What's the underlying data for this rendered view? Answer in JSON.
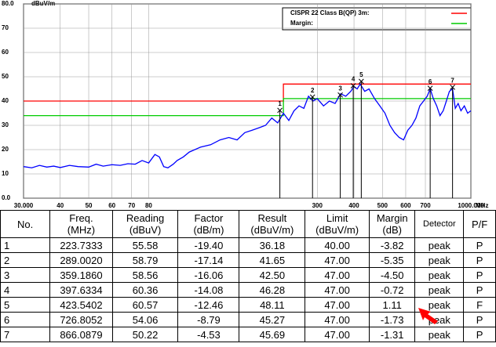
{
  "chart_data": {
    "type": "line",
    "y_label": "dBuV/m",
    "x_unit": "MHz",
    "xlog": true,
    "xlim": [
      30,
      1000
    ],
    "ylim": [
      0,
      80
    ],
    "xticks": [
      {
        "value": 30,
        "label": "30.000"
      },
      40,
      50,
      60,
      70,
      80,
      300,
      400,
      500,
      600,
      700,
      {
        "value": 1000,
        "label": "1000.000"
      }
    ],
    "yticks": [
      {
        "value": 0,
        "label": "0.0"
      },
      10,
      20,
      30,
      40,
      50,
      60,
      70,
      {
        "value": 80,
        "label": "80.0"
      }
    ],
    "grid": true,
    "series": [
      {
        "name": "CISPR 22 Class B(QP) 3m:",
        "color": "#ff0000",
        "x": [
          30,
          230,
          230,
          1000
        ],
        "values": [
          40,
          40,
          47,
          47
        ]
      },
      {
        "name": "Margin:",
        "color": "#00cc00",
        "x": [
          30,
          230,
          230,
          1000
        ],
        "values": [
          34,
          34,
          41,
          41
        ]
      },
      {
        "color": "#0000ff",
        "x": [
          30,
          32,
          34,
          36,
          38,
          40,
          43,
          46,
          50,
          53,
          56,
          60,
          64,
          68,
          72,
          76,
          80,
          84,
          87,
          90,
          93,
          97,
          100,
          105,
          110,
          120,
          130,
          140,
          150,
          160,
          170,
          180,
          190,
          200,
          210,
          220,
          230,
          240,
          250,
          260,
          270,
          280,
          290,
          300,
          315,
          330,
          345,
          360,
          375,
          390,
          400,
          410,
          420,
          435,
          450,
          470,
          490,
          510,
          530,
          550,
          570,
          590,
          610,
          630,
          650,
          670,
          690,
          710,
          727,
          745,
          765,
          785,
          805,
          825,
          845,
          866,
          885,
          905,
          925,
          950,
          975,
          1000
        ],
        "values": [
          13,
          12.5,
          13.5,
          12.8,
          13.2,
          12.6,
          13.5,
          13,
          12.8,
          14,
          13.2,
          13.8,
          13.5,
          14.2,
          14,
          15.5,
          14.5,
          18,
          17,
          13,
          12.5,
          14,
          15.5,
          17,
          19,
          21,
          22,
          24,
          25,
          24,
          27,
          28,
          29,
          30,
          33,
          31,
          35,
          32,
          36,
          38,
          37,
          42,
          40,
          41,
          38,
          40,
          39,
          43,
          42,
          44,
          46,
          45,
          47,
          44,
          45,
          41,
          38,
          35,
          30,
          27,
          25,
          24,
          28,
          30,
          33,
          38,
          40,
          42,
          45,
          41,
          38,
          34,
          36,
          40,
          44,
          45,
          37,
          39,
          36,
          38,
          35,
          36
        ]
      }
    ],
    "markers": {
      "labels": [
        "1",
        "2",
        "3",
        "4",
        "5",
        "6",
        "7"
      ],
      "x": [
        223.7333,
        289.002,
        359.186,
        397.6334,
        423.5402,
        726.8052,
        866.0879
      ],
      "values": [
        36.18,
        41.65,
        42.5,
        46.28,
        48.11,
        45.27,
        45.69
      ]
    }
  },
  "table": {
    "header": [
      "No.",
      "Freq.\n(MHz)",
      "Reading\n(dBuV)",
      "Factor\n(dB/m)",
      "Result\n(dBuV/m)",
      "Limit\n(dBuV/m)",
      "Margin\n(dB)",
      "Detector",
      "P/F"
    ],
    "rows": [
      [
        "1",
        "223.7333",
        "55.58",
        "-19.40",
        "36.18",
        "40.00",
        "-3.82",
        "peak",
        "P"
      ],
      [
        "2",
        "289.0020",
        "58.79",
        "-17.14",
        "41.65",
        "47.00",
        "-5.35",
        "peak",
        "P"
      ],
      [
        "3",
        "359.1860",
        "58.56",
        "-16.06",
        "42.50",
        "47.00",
        "-4.50",
        "peak",
        "P"
      ],
      [
        "4",
        "397.6334",
        "60.36",
        "-14.08",
        "46.28",
        "47.00",
        "-0.72",
        "peak",
        "P"
      ],
      [
        "5",
        "423.5402",
        "60.57",
        "-12.46",
        "48.11",
        "47.00",
        "1.11",
        "peak",
        "F"
      ],
      [
        "6",
        "726.8052",
        "54.06",
        "-8.79",
        "45.27",
        "47.00",
        "-1.73",
        "peak",
        "P"
      ],
      [
        "7",
        "866.0879",
        "50.22",
        "-4.53",
        "45.69",
        "47.00",
        "-1.31",
        "peak",
        "P"
      ]
    ]
  }
}
